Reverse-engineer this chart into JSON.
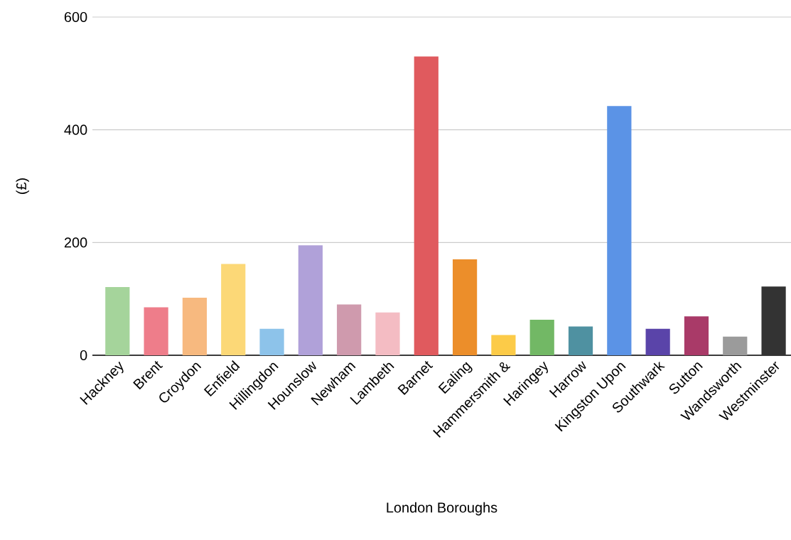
{
  "chart_data": {
    "type": "bar",
    "xlabel": "London Boroughs",
    "ylabel": "(£)",
    "categories": [
      "Hackney",
      "Brent",
      "Croydon",
      "Enfield",
      "Hillingdon",
      "Hounslow",
      "Newham",
      "Lambeth",
      "Barnet",
      "Ealing",
      "Hammersmith &",
      "Haringey",
      "Harrow",
      "Kingston Upon",
      "Southwark",
      "Sutton",
      "Wandsworth",
      "Westminster"
    ],
    "values": [
      121,
      85,
      102,
      162,
      47,
      195,
      90,
      76,
      530,
      170,
      36,
      63,
      51,
      442,
      47,
      69,
      33,
      122
    ],
    "colors": [
      "#a5d49b",
      "#ee7d8a",
      "#f7b97f",
      "#fcd877",
      "#8dc3ea",
      "#b0a1d9",
      "#cf9aad",
      "#f4bcc3",
      "#e05a5e",
      "#ec8e2a",
      "#fccb48",
      "#72b865",
      "#4f91a1",
      "#5b93e6",
      "#5a44a9",
      "#a93a68",
      "#9b9b9b",
      "#333333"
    ],
    "ylim": [
      0,
      600
    ],
    "yticks": [
      0,
      200,
      400,
      600
    ],
    "grid": "y"
  }
}
